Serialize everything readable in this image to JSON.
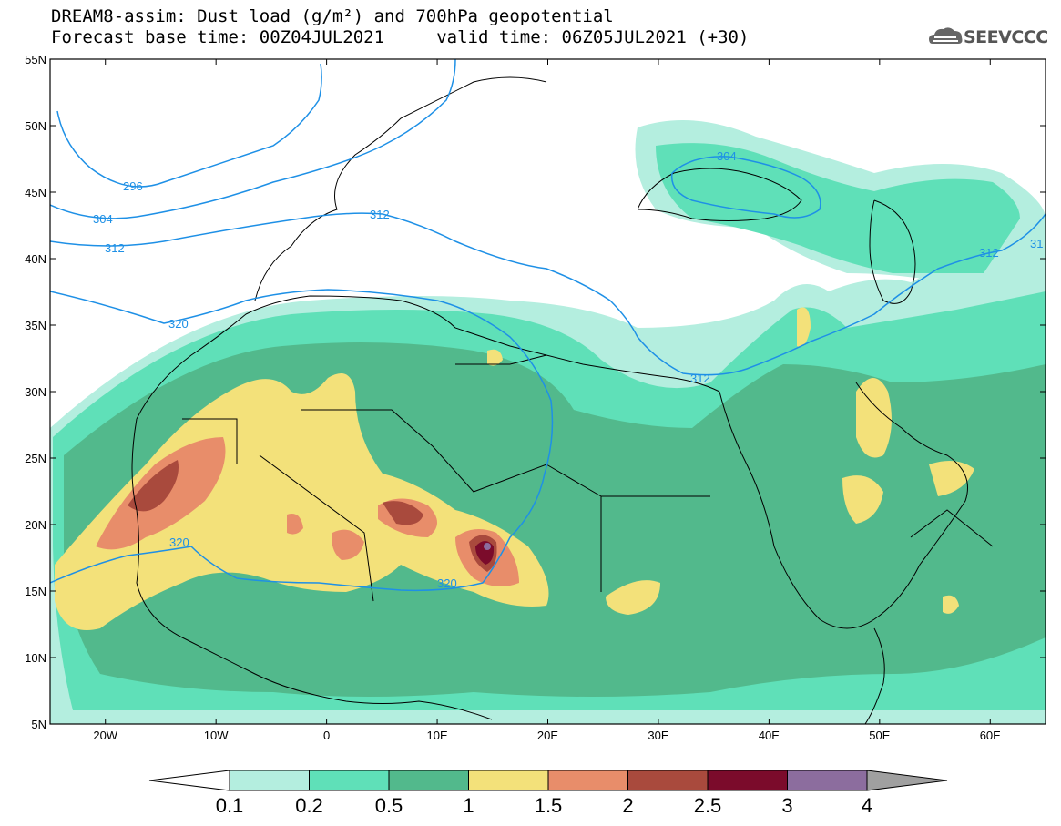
{
  "title": {
    "line1": "DREAM8-assim: Dust load (g/m²) and 700hPa geopotential",
    "line2": "Forecast base time: 00Z04JUL2021     valid time: 06Z05JUL2021 (+30)"
  },
  "logo": {
    "text": "SEEVCCC",
    "icon": "cloud-icon"
  },
  "map": {
    "lon_range": [
      -25,
      65
    ],
    "lat_range": [
      5,
      55
    ],
    "lat_ticks": [
      "55N",
      "50N",
      "45N",
      "40N",
      "35N",
      "30N",
      "25N",
      "20N",
      "15N",
      "10N",
      "5N"
    ],
    "lon_ticks": [
      "20W",
      "10W",
      "0",
      "10E",
      "20E",
      "30E",
      "40E",
      "50E",
      "60E"
    ]
  },
  "contours": {
    "color": "#1e90e6",
    "labels": [
      "296",
      "304",
      "312",
      "320",
      "312",
      "320",
      "320",
      "304",
      "312",
      "312",
      "31"
    ]
  },
  "colorbar": {
    "labels": [
      "0.1",
      "0.2",
      "0.5",
      "1",
      "1.5",
      "2",
      "2.5",
      "3",
      "4"
    ],
    "colors": [
      "#ffffff",
      "#b4eedf",
      "#5fe0b8",
      "#52b98c",
      "#f3e17a",
      "#e88d6a",
      "#a94a3d",
      "#7b0b2b",
      "#8c6d9e",
      "#a0a0a0"
    ]
  }
}
